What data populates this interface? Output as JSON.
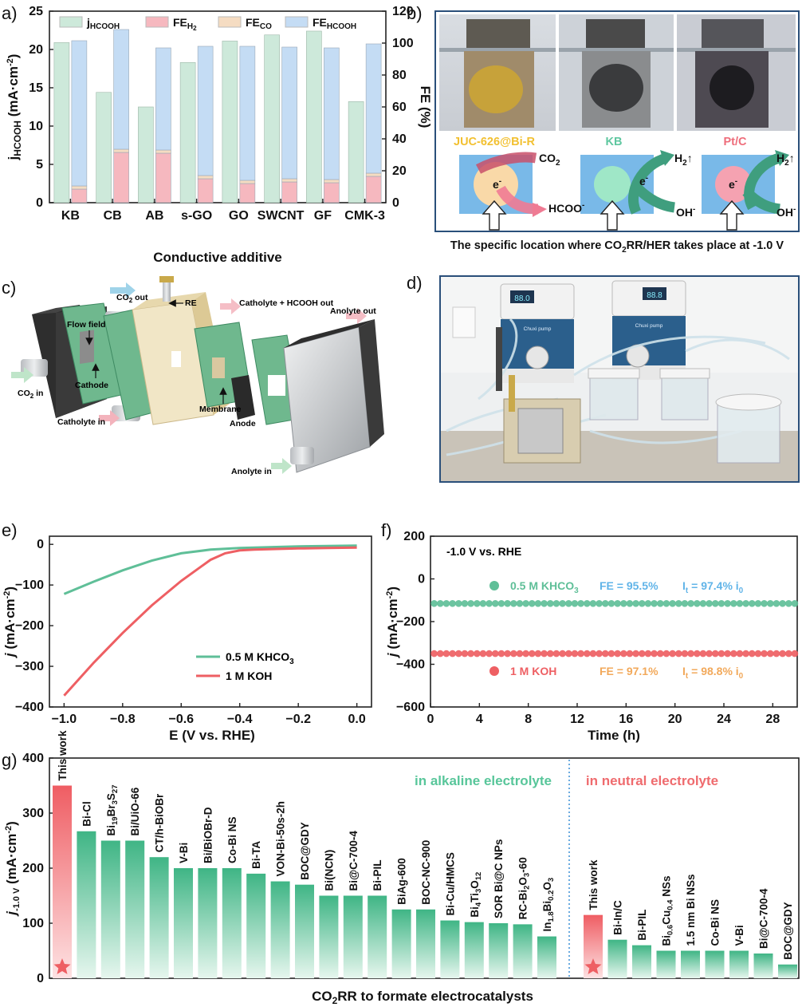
{
  "panel_letters": [
    "a)",
    "b)",
    "c)",
    "d)",
    "e)",
    "f)",
    "g)"
  ],
  "colors": {
    "j_hcooh": "#cde9da",
    "fe_h2": "#f6b8bf",
    "fe_co": "#f5dcc2",
    "fe_hcooh": "#c4dcf4",
    "khco3": "#5fbf98",
    "koh": "#ee5f63",
    "kb_label": "#5fc7a0",
    "juc_label": "#f2c030",
    "ptc_label": "#ee6c7a",
    "alk_text": "#58c69a",
    "neu_text": "#ef6b6e"
  },
  "chart_data": [
    {
      "panel": "a",
      "type": "bar",
      "categories": [
        "KB",
        "CB",
        "AB",
        "s-GO",
        "GO",
        "SWCNT",
        "GF",
        "CMK-3"
      ],
      "xlabel": "Conductive additive",
      "ylabel_left": "jHCOOH (mA·cm⁻²)",
      "ylabel_right": "FE (%)",
      "ylim_left": [
        0,
        25
      ],
      "ylim_right": [
        0,
        120
      ],
      "yticks_left": [
        "0",
        "5",
        "10",
        "15",
        "20",
        "25"
      ],
      "yticks_right": [
        "0",
        "20",
        "40",
        "60",
        "80",
        "100",
        "120"
      ],
      "legend": [
        "jHCOOH",
        "FEH2",
        "FECO",
        "FEHCOOH"
      ],
      "series": [
        {
          "name": "jHCOOH",
          "axis": "left",
          "values": [
            20.9,
            14.4,
            12.5,
            18.3,
            21.1,
            21.9,
            22.4,
            13.2
          ]
        },
        {
          "name": "FEH2",
          "axis": "right",
          "stack": "FE",
          "values": [
            8.5,
            31.5,
            31.0,
            15.0,
            12.0,
            13.0,
            12.5,
            16.5
          ]
        },
        {
          "name": "FECO",
          "axis": "right",
          "stack": "FE",
          "values": [
            2.0,
            2.0,
            2.0,
            2.0,
            2.0,
            2.0,
            2.0,
            2.0
          ]
        },
        {
          "name": "FEHCOOH",
          "axis": "right",
          "stack": "FE",
          "values": [
            91.0,
            75.0,
            64.0,
            81.0,
            84.0,
            82.5,
            82.5,
            81.0
          ]
        }
      ]
    },
    {
      "panel": "e",
      "type": "line",
      "xlabel": "E (V vs. RHE)",
      "ylabel": "j (mA·cm⁻²)",
      "xlim": [
        -1.05,
        0.05
      ],
      "ylim": [
        -400,
        20
      ],
      "xticks": [
        "−1.0",
        "−0.8",
        "−0.6",
        "−0.4",
        "−0.2",
        "0.0"
      ],
      "yticks": [
        "0",
        "−100",
        "−200",
        "−300",
        "−400"
      ],
      "series": [
        {
          "name": "0.5 M KHCO3",
          "x": [
            -1.0,
            -0.9,
            -0.8,
            -0.7,
            -0.6,
            -0.5,
            -0.4,
            -0.3,
            -0.2,
            -0.1,
            0.0
          ],
          "y": [
            -122,
            -92,
            -64,
            -40,
            -22,
            -13,
            -9,
            -7,
            -5,
            -4,
            -3
          ]
        },
        {
          "name": "1 M KOH",
          "x": [
            -1.0,
            -0.9,
            -0.8,
            -0.7,
            -0.6,
            -0.5,
            -0.45,
            -0.4,
            -0.35,
            -0.3,
            -0.2,
            -0.1,
            0.0
          ],
          "y": [
            -372,
            -292,
            -218,
            -150,
            -90,
            -38,
            -22,
            -15,
            -13,
            -12,
            -10,
            -9,
            -8
          ]
        }
      ]
    },
    {
      "panel": "f",
      "type": "scatter",
      "xlabel": "Time (h)",
      "ylabel": "j (mA·cm⁻²)",
      "xlim": [
        0,
        30
      ],
      "ylim": [
        -600,
        200
      ],
      "xticks": [
        "0",
        "4",
        "8",
        "12",
        "16",
        "20",
        "24",
        "28"
      ],
      "yticks": [
        "200",
        "0",
        "−200",
        "−400",
        "−600"
      ],
      "annotation": "-1.0 V vs. RHE",
      "series": [
        {
          "name": "0.5 M KHCO3",
          "level": -115,
          "x_start": 0.3,
          "x_end": 29.8,
          "count": 60,
          "fe": "FE = 95.5%",
          "it": "It = 97.4% i0"
        },
        {
          "name": "1 M KOH",
          "level": -350,
          "x_start": 0.3,
          "x_end": 29.8,
          "count": 60,
          "fe": "FE = 97.1%",
          "it": "It = 98.8% i0"
        }
      ]
    },
    {
      "panel": "g",
      "type": "bar",
      "xlabel": "CO2RR to formate electrocatalysts",
      "ylabel": "j-1.0 V (mA·cm⁻²)",
      "ylim": [
        0,
        400
      ],
      "yticks": [
        "0",
        "100",
        "200",
        "300",
        "400"
      ],
      "groups": [
        {
          "label": "in alkaline electrolyte",
          "categories": [
            "This work",
            "Bi-Cl",
            "Bi19Br3S27",
            "Bi/UiO-66",
            "CT/h-BiOBr",
            "V-Bi",
            "Bi/BiOBr-D",
            "Co-Bi NS",
            "Bi-TA",
            "VON-Bi-50s-2h",
            "BOC@GDY",
            "Bi(NCN)",
            "Bi@C-700-4",
            "Bi-PIL",
            "BiAg-600",
            "BOC-NC-900",
            "Bi-Cu/HMCS",
            "Bi4Ti3O12",
            "SOR Bi@C NPs",
            "RC-Bi2O3-60",
            "In1.8Bi0.2O3"
          ],
          "values": [
            350,
            267,
            250,
            250,
            220,
            200,
            200,
            200,
            190,
            176,
            170,
            150,
            150,
            150,
            125,
            125,
            105,
            102,
            100,
            98,
            76
          ]
        },
        {
          "label": "in neutral electrolyte",
          "categories": [
            "This work",
            "Bi-In/C",
            "Bi-PIL",
            "Bi0.6Cu0.4 NSs",
            "1.5 nm Bi NSs",
            "Co-Bi NS",
            "V-Bi",
            "Bi@C-700-4",
            "BOC@GDY"
          ],
          "values": [
            115,
            70,
            60,
            50,
            50,
            50,
            50,
            45,
            25
          ]
        }
      ]
    }
  ],
  "panel_b": {
    "labels": [
      "JUC-626@Bi-R",
      "KB",
      "Pt/C"
    ],
    "co2": "CO",
    "co2_sub": "2",
    "hcoo": "HCOO",
    "hcoo_sup": "-",
    "h2": "H",
    "h2_sub": "2",
    "oh": "OH",
    "oh_sup": "-",
    "electron": "e",
    "electron_sup": "-",
    "caption": "The specific location where CO2RR/HER takes place at -1.0 V"
  },
  "panel_c": {
    "labels": [
      "CO2 out",
      "RE",
      "Catholyte + HCOOH out",
      "Anolyte out",
      "Flow field",
      "Cathode",
      "CO2 in",
      "Catholyte in",
      "Membrane",
      "Anode",
      "Anolyte in"
    ]
  },
  "panel_d": {
    "pump_label": "Chuxi pump",
    "display_1": "88.0",
    "display_2": "88.8"
  }
}
